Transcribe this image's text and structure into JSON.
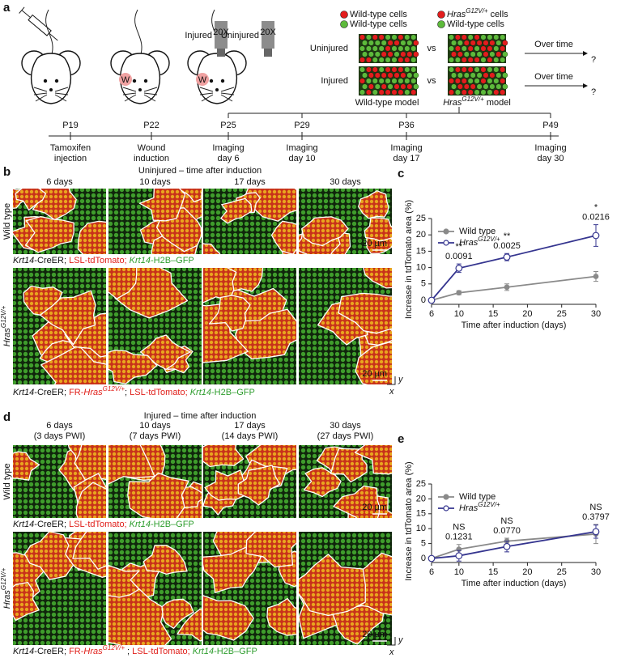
{
  "panel_a": {
    "label": "a",
    "objective": "20X",
    "wound": "W",
    "microscope_labels": [
      "Injured",
      "Uninjured"
    ],
    "legend": [
      {
        "color": "#e31d1d",
        "text": [
          {
            "t": "Wild-type cells"
          }
        ]
      },
      {
        "color": "#e31d1d",
        "text": [
          {
            "t": "Hras",
            "i": true
          },
          {
            "t": "G12V/+",
            "i": true,
            "sup": true
          },
          {
            "t": " cells"
          }
        ]
      },
      {
        "color": "#5dba3b",
        "text": [
          {
            "t": "Wild-type cells"
          }
        ]
      },
      {
        "color": "#5dba3b",
        "text": [
          {
            "t": "Wild-type cells"
          }
        ]
      }
    ],
    "conditions": [
      "Uninjured",
      "Injured"
    ],
    "vs": "vs",
    "over_time": "Over time",
    "question": "?",
    "models": [
      [
        {
          "t": "Wild-type model"
        }
      ],
      [
        {
          "t": "Hras",
          "i": true
        },
        {
          "t": "G12V/+",
          "i": true,
          "sup": true
        },
        {
          "t": " model"
        }
      ]
    ],
    "timeline": [
      {
        "day": "P19",
        "label": [
          "Tamoxifen",
          "injection"
        ]
      },
      {
        "day": "P22",
        "label": [
          "Wound",
          "induction"
        ]
      },
      {
        "day": "P25",
        "label": [
          "Imaging",
          "day 6"
        ]
      },
      {
        "day": "P29",
        "label": [
          "Imaging",
          "day 10"
        ]
      },
      {
        "day": "P36",
        "label": [
          "Imaging",
          "day 17"
        ]
      },
      {
        "day": "P49",
        "label": [
          "Imaging",
          "day 30"
        ]
      }
    ]
  },
  "panel_b": {
    "label": "b",
    "title": "Uninjured – time after induction",
    "columns": [
      [
        "6 days"
      ],
      [
        "10 days"
      ],
      [
        "17 days"
      ],
      [
        "30 days"
      ]
    ],
    "rows": [
      [
        {
          "t": "Wild type"
        }
      ],
      [
        {
          "t": "Hras",
          "i": true
        },
        {
          "t": "G12V/+",
          "i": true,
          "sup": true
        }
      ]
    ],
    "scale_bar": "20 µm",
    "axes": [
      "y",
      "x"
    ],
    "captions": [
      [
        {
          "t": "Krt14",
          "i": true
        },
        {
          "t": "-CreER; "
        },
        {
          "t": "LSL-tdTomato; ",
          "c": "#e0201b"
        },
        {
          "t": "Krt14",
          "i": true,
          "c": "#2f9e2f"
        },
        {
          "t": "-H2B–GFP",
          "c": "#2f9e2f"
        }
      ],
      [
        {
          "t": "Krt14",
          "i": true
        },
        {
          "t": "-CreER; "
        },
        {
          "t": "FR-",
          "c": "#e0201b"
        },
        {
          "t": "Hras",
          "i": true,
          "c": "#e0201b"
        },
        {
          "t": "G12V/+",
          "i": true,
          "sup": true,
          "c": "#e0201b"
        },
        {
          "t": "; "
        },
        {
          "t": "LSL-tdTomato; ",
          "c": "#e0201b"
        },
        {
          "t": "Krt14",
          "i": true,
          "c": "#2f9e2f"
        },
        {
          "t": "-H2B–GFP",
          "c": "#2f9e2f"
        }
      ]
    ]
  },
  "panel_d": {
    "label": "d",
    "title": "Injured – time after induction",
    "columns": [
      [
        "6 days",
        "(3 days PWI)"
      ],
      [
        "10 days",
        "(7 days PWI)"
      ],
      [
        "17 days",
        "(14 days PWI)"
      ],
      [
        "30 days",
        "(27 days PWI)"
      ]
    ],
    "rows": [
      [
        {
          "t": "Wild type"
        }
      ],
      [
        {
          "t": "Hras",
          "i": true
        },
        {
          "t": "G12V/+",
          "i": true,
          "sup": true
        }
      ]
    ],
    "scale_bar": "20 µm",
    "axes": [
      "y",
      "x"
    ],
    "captions": [
      [
        {
          "t": "Krt14",
          "i": true
        },
        {
          "t": "-CreER; "
        },
        {
          "t": "LSL-tdTomato; ",
          "c": "#e0201b"
        },
        {
          "t": "Krt14",
          "i": true,
          "c": "#2f9e2f"
        },
        {
          "t": "-H2B–GFP",
          "c": "#2f9e2f"
        }
      ],
      [
        {
          "t": "Krt14",
          "i": true
        },
        {
          "t": "-CreER; "
        },
        {
          "t": "FR-",
          "c": "#e0201b"
        },
        {
          "t": "Hras",
          "i": true,
          "c": "#e0201b"
        },
        {
          "t": "G12V/+",
          "i": true,
          "sup": true,
          "c": "#e0201b"
        },
        {
          "t": " ; "
        },
        {
          "t": "LSL-tdTomato; ",
          "c": "#e0201b"
        },
        {
          "t": "Krt14",
          "i": true,
          "c": "#2f9e2f"
        },
        {
          "t": "-H2B–GFP",
          "c": "#2f9e2f"
        }
      ]
    ]
  },
  "chart_data": [
    {
      "type": "line",
      "panel_label": "c",
      "x": [
        6,
        10,
        17,
        30
      ],
      "xlim": [
        6,
        30
      ],
      "xticks": [
        6,
        10,
        15,
        20,
        25,
        30
      ],
      "ylim": [
        0,
        25
      ],
      "yticks": [
        0,
        5,
        10,
        15,
        20,
        25
      ],
      "xlabel": "Time after induction (days)",
      "ylabel": "Increase in tdTomato area (%)",
      "legend": "upper left",
      "series": [
        {
          "name": "Wild type",
          "color": "#8a8a8a",
          "marker": "filled",
          "values": [
            0,
            2.3,
            4.0,
            7.3
          ],
          "errors": [
            0,
            0.6,
            1.0,
            1.5
          ]
        },
        {
          "name": "Hras",
          "name_sup": "G12V/+",
          "color": "#35358f",
          "marker": "open",
          "values": [
            0,
            9.8,
            13.2,
            19.8
          ],
          "errors": [
            0,
            1.3,
            1.1,
            3.3
          ]
        }
      ],
      "annotations": [
        {
          "x": 10,
          "marker": "**",
          "p": "0.0091"
        },
        {
          "x": 17,
          "marker": "**",
          "p": "0.0025"
        },
        {
          "x": 30,
          "marker": "*",
          "p": "0.0216"
        }
      ]
    },
    {
      "type": "line",
      "panel_label": "e",
      "x": [
        6,
        10,
        17,
        30
      ],
      "xlim": [
        6,
        30
      ],
      "xticks": [
        6,
        10,
        15,
        20,
        25,
        30
      ],
      "ylim": [
        0,
        25
      ],
      "yticks": [
        0,
        5,
        10,
        15,
        20,
        25
      ],
      "xlabel": "Time after induction (days)",
      "ylabel": "Increase in tdTomato area (%)",
      "legend": "upper left",
      "series": [
        {
          "name": "Wild type",
          "color": "#8a8a8a",
          "marker": "filled",
          "values": [
            0,
            3.1,
            5.8,
            8.2
          ],
          "errors": [
            0,
            1.6,
            1.0,
            3.2
          ]
        },
        {
          "name": "Hras",
          "name_sup": "G12V/+",
          "color": "#35358f",
          "marker": "open",
          "values": [
            0,
            0.9,
            4.0,
            9.0
          ],
          "errors": [
            0,
            1.8,
            1.8,
            2.2
          ]
        }
      ],
      "annotations": [
        {
          "x": 10,
          "marker": "NS",
          "p": "0.1231"
        },
        {
          "x": 17,
          "marker": "NS",
          "p": "0.0770"
        },
        {
          "x": 30,
          "marker": "NS",
          "p": "0.3797"
        }
      ]
    }
  ]
}
